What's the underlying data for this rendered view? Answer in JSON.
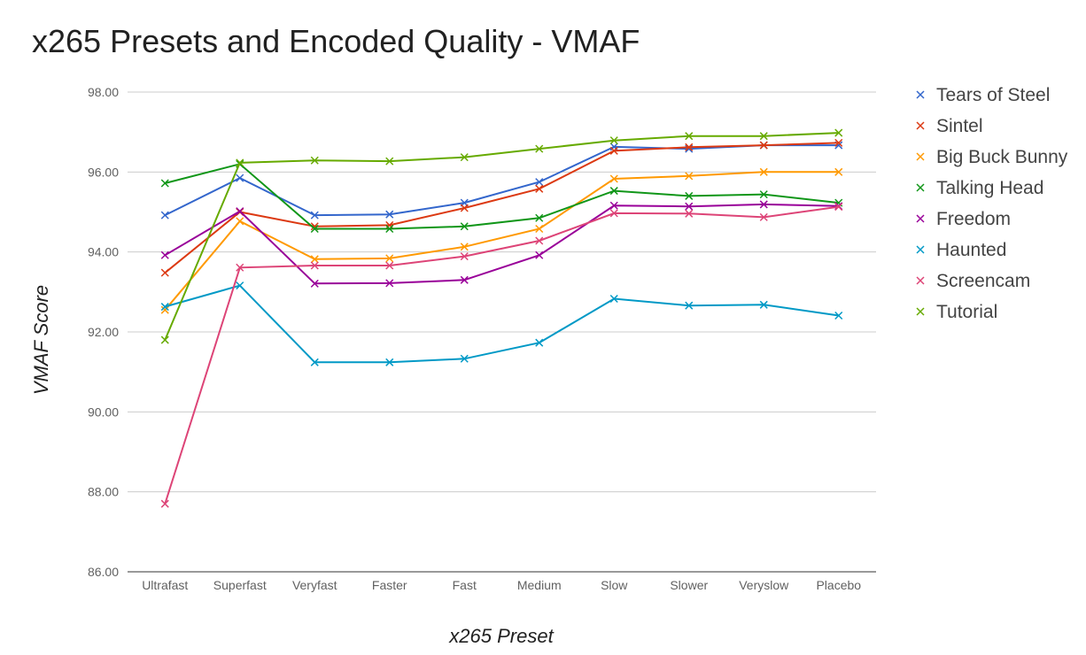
{
  "chart_data": {
    "type": "line",
    "title": "x265 Presets and Encoded Quality - VMAF",
    "xlabel": "x265 Preset",
    "ylabel": "VMAF Score",
    "ylim": [
      86,
      98
    ],
    "yticks": [
      "98.00",
      "96.00",
      "94.00",
      "92.00",
      "90.00",
      "88.00",
      "86.00"
    ],
    "ytick_values": [
      98,
      96,
      94,
      92,
      90,
      88,
      86
    ],
    "grid": true,
    "legend_position": "right",
    "marker": "x",
    "categories": [
      "Ultrafast",
      "Superfast",
      "Veryfast",
      "Faster",
      "Fast",
      "Medium",
      "Slow",
      "Slower",
      "Veryslow",
      "Placebo"
    ],
    "series": [
      {
        "name": "Tears of Steel",
        "color": "#3366cc",
        "values": [
          94.92,
          95.85,
          94.92,
          94.94,
          95.23,
          95.75,
          96.63,
          96.58,
          96.67,
          96.67
        ]
      },
      {
        "name": "Sintel",
        "color": "#dc3912",
        "values": [
          93.48,
          95.0,
          94.64,
          94.67,
          95.1,
          95.58,
          96.53,
          96.62,
          96.67,
          96.73
        ]
      },
      {
        "name": "Big Buck Bunny",
        "color": "#ff9900",
        "values": [
          92.55,
          94.77,
          93.82,
          93.84,
          94.13,
          94.58,
          95.83,
          95.9,
          96.0,
          96.0
        ]
      },
      {
        "name": "Talking Head",
        "color": "#109618",
        "values": [
          95.72,
          96.2,
          94.58,
          94.58,
          94.64,
          94.85,
          95.53,
          95.4,
          95.44,
          95.23
        ]
      },
      {
        "name": "Freedom",
        "color": "#990099",
        "values": [
          93.92,
          95.02,
          93.21,
          93.22,
          93.3,
          93.92,
          95.16,
          95.14,
          95.19,
          95.15
        ]
      },
      {
        "name": "Haunted",
        "color": "#0099c6",
        "values": [
          92.63,
          93.16,
          91.24,
          91.24,
          91.33,
          91.73,
          92.83,
          92.66,
          92.68,
          92.41
        ]
      },
      {
        "name": "Screencam",
        "color": "#dd4477",
        "values": [
          87.7,
          93.61,
          93.66,
          93.66,
          93.89,
          94.28,
          94.97,
          94.96,
          94.87,
          95.13
        ]
      },
      {
        "name": "Tutorial",
        "color": "#66aa00",
        "values": [
          91.8,
          96.23,
          96.29,
          96.27,
          96.37,
          96.58,
          96.79,
          96.9,
          96.9,
          96.98
        ]
      }
    ]
  }
}
